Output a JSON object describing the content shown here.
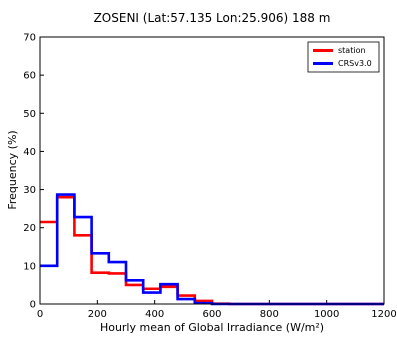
{
  "chart_data": {
    "type": "step",
    "title": "ZOSENI (Lat:57.135 Lon:25.906) 188 m",
    "xlabel": "Hourly mean of Global Irradiance (W/m²)",
    "ylabel": "Frequency (%)",
    "xlim": [
      0,
      1200
    ],
    "ylim": [
      0,
      70
    ],
    "xticks": [
      0,
      200,
      400,
      600,
      800,
      1000,
      1200
    ],
    "yticks": [
      0,
      10,
      20,
      30,
      40,
      50,
      60,
      70
    ],
    "grid": false,
    "legend_position": "top-right",
    "bin_edges": [
      0,
      60,
      120,
      180,
      240,
      300,
      360,
      420,
      480,
      540,
      600,
      660,
      720,
      780,
      840,
      900,
      960,
      1020,
      1080,
      1140,
      1200
    ],
    "series": [
      {
        "name": "station",
        "color": "#ff0000",
        "values": [
          21.5,
          28,
          18,
          8.2,
          8,
          5,
          4,
          4.5,
          2.2,
          0.8,
          0.1,
          0,
          0,
          0,
          0,
          0,
          0,
          0,
          0,
          0
        ]
      },
      {
        "name": "CRSv3.0",
        "color": "#0000ff",
        "values": [
          10,
          28.7,
          22.8,
          13.3,
          11,
          6.2,
          3,
          5.2,
          1.3,
          0.2,
          0,
          0,
          0,
          0,
          0,
          0,
          0,
          0,
          0,
          0
        ]
      }
    ]
  }
}
